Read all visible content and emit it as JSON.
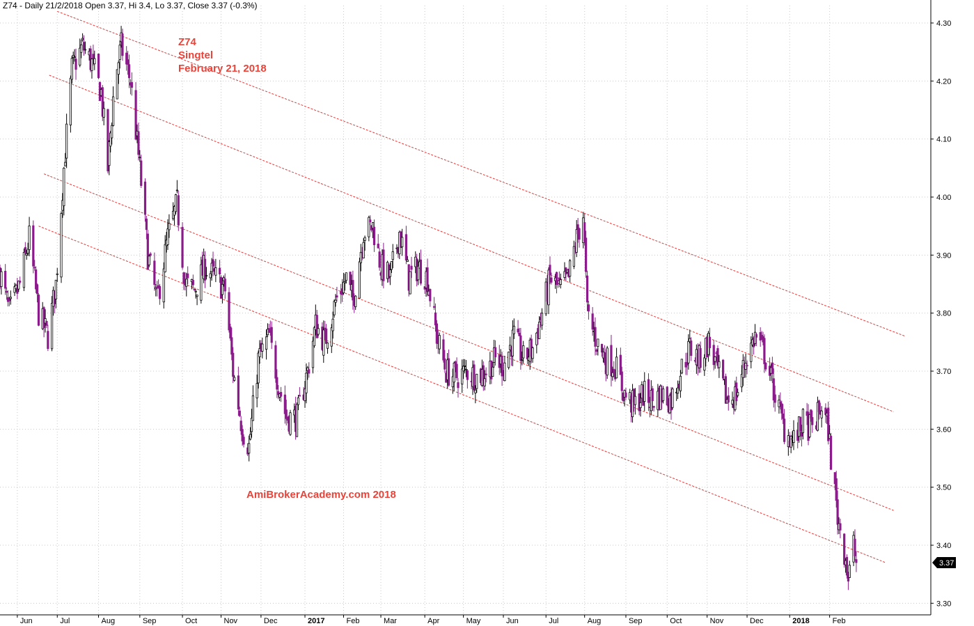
{
  "header": {
    "text": "Z74 - Daily 21/2/2018 Open 3.37, Hi 3.4, Lo 3.37, Close 3.37 (-0.3%)"
  },
  "annotations": {
    "symbol": "Z74",
    "name": "Singtel",
    "date": "February 21, 2018",
    "watermark": "AmiBrokerAcademy.com  2018"
  },
  "colors": {
    "up_candle": "#000000",
    "down_candle": "#8b1a8b",
    "channel_line": "#e03a3a",
    "grid": "#c8c8c8"
  },
  "chart_data": {
    "type": "candlestick",
    "x_range": [
      "2016-05-19",
      "2018-04-18"
    ],
    "y_range": [
      3.28,
      4.33
    ],
    "y_ticks": [
      3.3,
      3.4,
      3.5,
      3.6,
      3.7,
      3.8,
      3.9,
      4.0,
      4.1,
      4.2,
      4.3
    ],
    "y_tick_labels": [
      "3.30",
      "3.40",
      "3.50",
      "3.60",
      "3.70",
      "3.80",
      "3.90",
      "4.00",
      "4.10",
      "4.20",
      "4.30"
    ],
    "x_ticks": [
      {
        "label": "Jun",
        "date": "2016-06-01",
        "year": false
      },
      {
        "label": "Jul",
        "date": "2016-07-01",
        "year": false
      },
      {
        "label": "Aug",
        "date": "2016-08-01",
        "year": false
      },
      {
        "label": "Sep",
        "date": "2016-09-01",
        "year": false
      },
      {
        "label": "Oct",
        "date": "2016-10-03",
        "year": false
      },
      {
        "label": "Nov",
        "date": "2016-11-01",
        "year": false
      },
      {
        "label": "Dec",
        "date": "2016-12-01",
        "year": false
      },
      {
        "label": "2017",
        "date": "2017-01-03",
        "year": true
      },
      {
        "label": "Feb",
        "date": "2017-02-01",
        "year": false
      },
      {
        "label": "Mar",
        "date": "2017-03-01",
        "year": false
      },
      {
        "label": "Apr",
        "date": "2017-04-03",
        "year": false
      },
      {
        "label": "May",
        "date": "2017-05-02",
        "year": false
      },
      {
        "label": "Jun",
        "date": "2017-06-01",
        "year": false
      },
      {
        "label": "Jul",
        "date": "2017-07-03",
        "year": false
      },
      {
        "label": "Aug",
        "date": "2017-08-01",
        "year": false
      },
      {
        "label": "Sep",
        "date": "2017-09-01",
        "year": false
      },
      {
        "label": "Oct",
        "date": "2017-10-02",
        "year": false
      },
      {
        "label": "Nov",
        "date": "2017-11-01",
        "year": false
      },
      {
        "label": "Dec",
        "date": "2017-12-01",
        "year": false
      },
      {
        "label": "2018",
        "date": "2018-01-02",
        "year": true
      },
      {
        "label": "Feb",
        "date": "2018-02-01",
        "year": false
      }
    ],
    "last_price": {
      "value": 3.37,
      "label": "3.37"
    },
    "channel_lines": [
      {
        "x1": "2016-07-01",
        "y1": 4.32,
        "x2": "2018-03-30",
        "y2": 3.76
      },
      {
        "x1": "2016-06-25",
        "y1": 4.21,
        "x2": "2018-03-21",
        "y2": 3.63
      },
      {
        "x1": "2016-06-21",
        "y1": 4.04,
        "x2": "2018-03-21",
        "y2": 3.46
      },
      {
        "x1": "2016-06-17",
        "y1": 3.95,
        "x2": "2018-03-15",
        "y2": 3.37
      }
    ],
    "price_path": [
      [
        "2016-05-19",
        3.87
      ],
      [
        "2016-05-26",
        3.8
      ],
      [
        "2016-06-03",
        3.85
      ],
      [
        "2016-06-10",
        3.93
      ],
      [
        "2016-06-17",
        3.8
      ],
      [
        "2016-06-24",
        3.76
      ],
      [
        "2016-06-30",
        3.85
      ],
      [
        "2016-07-06",
        4.05
      ],
      [
        "2016-07-12",
        4.22
      ],
      [
        "2016-07-20",
        4.26
      ],
      [
        "2016-07-27",
        4.23
      ],
      [
        "2016-08-03",
        4.18
      ],
      [
        "2016-08-08",
        4.05
      ],
      [
        "2016-08-13",
        4.2
      ],
      [
        "2016-08-18",
        4.26
      ],
      [
        "2016-08-25",
        4.2
      ],
      [
        "2016-09-01",
        4.05
      ],
      [
        "2016-09-07",
        3.9
      ],
      [
        "2016-09-14",
        3.82
      ],
      [
        "2016-09-22",
        3.93
      ],
      [
        "2016-09-29",
        3.99
      ],
      [
        "2016-10-05",
        3.85
      ],
      [
        "2016-10-12",
        3.84
      ],
      [
        "2016-10-20",
        3.88
      ],
      [
        "2016-10-28",
        3.86
      ],
      [
        "2016-11-04",
        3.84
      ],
      [
        "2016-11-10",
        3.7
      ],
      [
        "2016-11-17",
        3.6
      ],
      [
        "2016-11-22",
        3.57
      ],
      [
        "2016-11-29",
        3.72
      ],
      [
        "2016-12-07",
        3.76
      ],
      [
        "2016-12-14",
        3.68
      ],
      [
        "2016-12-20",
        3.62
      ],
      [
        "2016-12-28",
        3.62
      ],
      [
        "2017-01-05",
        3.7
      ],
      [
        "2017-01-11",
        3.78
      ],
      [
        "2017-01-18",
        3.75
      ],
      [
        "2017-01-26",
        3.82
      ],
      [
        "2017-02-03",
        3.86
      ],
      [
        "2017-02-08",
        3.82
      ],
      [
        "2017-02-16",
        3.94
      ],
      [
        "2017-02-23",
        3.95
      ],
      [
        "2017-03-01",
        3.88
      ],
      [
        "2017-03-08",
        3.86
      ],
      [
        "2017-03-15",
        3.94
      ],
      [
        "2017-03-22",
        3.86
      ],
      [
        "2017-03-29",
        3.88
      ],
      [
        "2017-04-05",
        3.86
      ],
      [
        "2017-04-12",
        3.76
      ],
      [
        "2017-04-19",
        3.7
      ],
      [
        "2017-04-26",
        3.69
      ],
      [
        "2017-05-05",
        3.7
      ],
      [
        "2017-05-12",
        3.69
      ],
      [
        "2017-05-19",
        3.7
      ],
      [
        "2017-05-26",
        3.72
      ],
      [
        "2017-06-01",
        3.71
      ],
      [
        "2017-06-09",
        3.76
      ],
      [
        "2017-06-16",
        3.72
      ],
      [
        "2017-06-23",
        3.74
      ],
      [
        "2017-06-30",
        3.8
      ],
      [
        "2017-07-06",
        3.86
      ],
      [
        "2017-07-13",
        3.84
      ],
      [
        "2017-07-20",
        3.86
      ],
      [
        "2017-07-25",
        3.92
      ],
      [
        "2017-07-31",
        3.97
      ],
      [
        "2017-08-03",
        3.8
      ],
      [
        "2017-08-10",
        3.75
      ],
      [
        "2017-08-17",
        3.72
      ],
      [
        "2017-08-24",
        3.71
      ],
      [
        "2017-08-31",
        3.66
      ],
      [
        "2017-09-07",
        3.64
      ],
      [
        "2017-09-14",
        3.66
      ],
      [
        "2017-09-21",
        3.65
      ],
      [
        "2017-09-28",
        3.66
      ],
      [
        "2017-10-05",
        3.65
      ],
      [
        "2017-10-12",
        3.7
      ],
      [
        "2017-10-19",
        3.74
      ],
      [
        "2017-10-26",
        3.72
      ],
      [
        "2017-11-02",
        3.75
      ],
      [
        "2017-11-09",
        3.7
      ],
      [
        "2017-11-16",
        3.65
      ],
      [
        "2017-11-23",
        3.66
      ],
      [
        "2017-11-30",
        3.72
      ],
      [
        "2017-12-07",
        3.76
      ],
      [
        "2017-12-14",
        3.73
      ],
      [
        "2017-12-22",
        3.66
      ],
      [
        "2017-12-29",
        3.6
      ],
      [
        "2018-01-05",
        3.58
      ],
      [
        "2018-01-12",
        3.61
      ],
      [
        "2018-01-19",
        3.6
      ],
      [
        "2018-01-26",
        3.64
      ],
      [
        "2018-01-31",
        3.6
      ],
      [
        "2018-02-02",
        3.55
      ],
      [
        "2018-02-07",
        3.45
      ],
      [
        "2018-02-13",
        3.38
      ],
      [
        "2018-02-15",
        3.34
      ],
      [
        "2018-02-19",
        3.4
      ],
      [
        "2018-02-21",
        3.37
      ]
    ]
  }
}
